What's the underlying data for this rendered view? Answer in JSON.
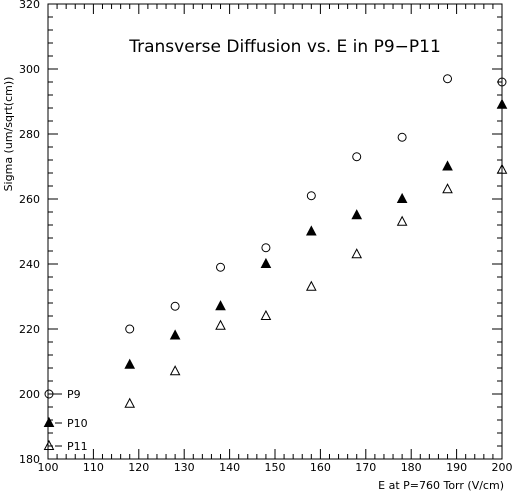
{
  "chart_data": {
    "type": "scatter",
    "title": "Transverse Diffusion vs. E in P9−P11",
    "xlabel": "E at P=760 Torr (V/cm)",
    "ylabel": "Sigma (um/sqrt(cm))",
    "xlim": [
      100,
      200
    ],
    "ylim": [
      180,
      320
    ],
    "x_ticks": [
      "100",
      "110",
      "120",
      "130",
      "140",
      "150",
      "160",
      "170",
      "180",
      "190",
      "200"
    ],
    "y_ticks": [
      "180",
      "200",
      "220",
      "240",
      "260",
      "280",
      "300",
      "320"
    ],
    "legend_position": "bottom-left",
    "grid": false,
    "series": [
      {
        "name": "P9",
        "marker": "open-circle",
        "x": [
          118,
          128,
          138,
          148,
          158,
          168,
          178,
          188,
          200
        ],
        "y": [
          220,
          227,
          239,
          245,
          261,
          273,
          279,
          297,
          296
        ]
      },
      {
        "name": "P10",
        "marker": "filled-triangle",
        "x": [
          118,
          128,
          138,
          148,
          158,
          168,
          178,
          188,
          200
        ],
        "y": [
          209,
          218,
          227,
          240,
          250,
          255,
          260,
          270,
          289
        ]
      },
      {
        "name": "P11",
        "marker": "open-triangle",
        "x": [
          118,
          128,
          138,
          148,
          158,
          168,
          178,
          188,
          200
        ],
        "y": [
          197,
          207,
          221,
          224,
          233,
          243,
          253,
          263,
          269
        ]
      }
    ]
  }
}
